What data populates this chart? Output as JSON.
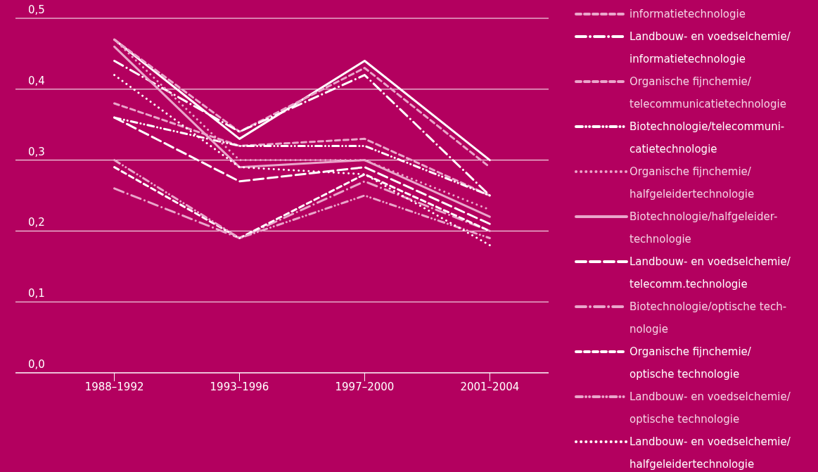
{
  "chart_data": {
    "type": "line",
    "categories": [
      "1988–1992",
      "1993–1996",
      "1997–2000",
      "2001–2004"
    ],
    "ylim": [
      0,
      0.5
    ],
    "yticks": [
      {
        "value": 0,
        "label": "0,0"
      },
      {
        "value": 0.1,
        "label": "0,1"
      },
      {
        "value": 0.2,
        "label": "0,2"
      },
      {
        "value": 0.3,
        "label": "0,3"
      },
      {
        "value": 0.4,
        "label": "0,4"
      },
      {
        "value": 0.5,
        "label": "0,5"
      }
    ],
    "grid": "y",
    "legend": "right",
    "marker": "none",
    "series": [
      {
        "color": "#ffffff",
        "line_style": "solid",
        "values": [
          0.47,
          0.33,
          0.44,
          0.3
        ]
      },
      {
        "name": "informatietechnologie",
        "color": "#eaa6cb",
        "line_style": "dashed",
        "values": [
          0.47,
          0.34,
          0.43,
          0.29
        ]
      },
      {
        "name": "Landbouw- en voedselchemie/\ninformatietechnologie",
        "color": "#ffffff",
        "line_style": "dashdot",
        "values": [
          0.44,
          0.34,
          0.42,
          0.25
        ]
      },
      {
        "name": "Organische fijnchemie/\ntelecommunicatietechnologie",
        "color": "#eaa6cb",
        "line_style": "dashed",
        "values": [
          0.38,
          0.32,
          0.33,
          0.25
        ]
      },
      {
        "name": "Biotechnologie/telecommuni-\ncatietechnologie",
        "color": "#ffffff",
        "line_style": "dashdotdot",
        "values": [
          0.36,
          0.32,
          0.32,
          0.25
        ]
      },
      {
        "name": "Organische fijnchemie/\nhalfgeleidertechnologie",
        "color": "#eaa6cb",
        "line_style": "dotted",
        "values": [
          0.47,
          0.3,
          0.3,
          0.23
        ]
      },
      {
        "name": "Biotechnologie/halfgeleider-\ntechnologie",
        "color": "#eaa6cb",
        "line_style": "solid",
        "values": [
          0.46,
          0.29,
          0.3,
          0.22
        ]
      },
      {
        "name": "Landbouw- en voedselchemie/\ntelecomm.technologie",
        "color": "#ffffff",
        "line_style": "longdash",
        "values": [
          0.36,
          0.27,
          0.29,
          0.21
        ]
      },
      {
        "name": "Biotechnologie/optische tech-\nnologie",
        "color": "#eaa6cb",
        "line_style": "dashdot",
        "values": [
          0.26,
          0.19,
          0.27,
          0.2
        ]
      },
      {
        "name": "Organische fijnchemie/\noptische technologie",
        "color": "#ffffff",
        "line_style": "dashed",
        "values": [
          0.29,
          0.19,
          0.28,
          0.2
        ]
      },
      {
        "name": "Landbouw- en voedselchemie/\noptische technologie",
        "color": "#eaa6cb",
        "line_style": "dashdotdot",
        "values": [
          0.3,
          0.19,
          0.25,
          0.19
        ]
      },
      {
        "name": "Landbouw- en voedselchemie/\nhalfgeleidertechnologie",
        "color": "#ffffff",
        "line_style": "dotted",
        "values": [
          0.42,
          0.29,
          0.28,
          0.18
        ]
      }
    ]
  }
}
